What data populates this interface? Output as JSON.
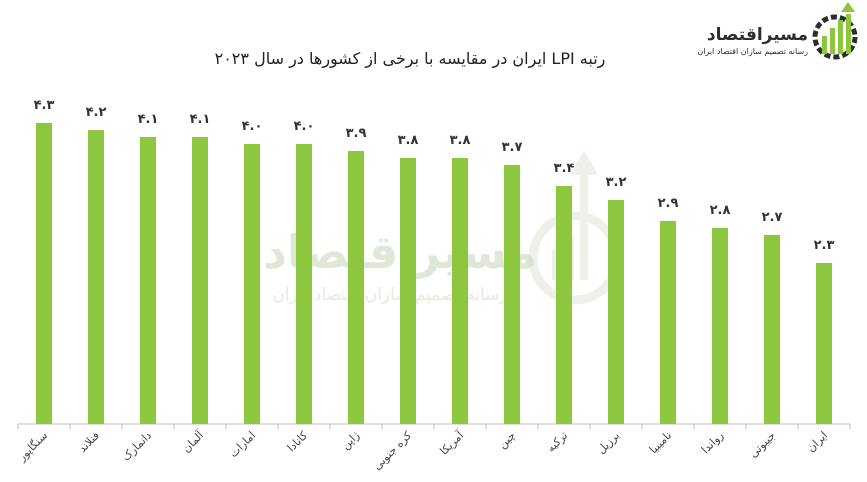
{
  "brand": {
    "name": "مسیراقتصاد",
    "tagline": "رسانه تصمیم سازان اقتصاد ایران",
    "color": "#8dc63f",
    "dark": "#2d2d2d"
  },
  "chart_data": {
    "type": "bar",
    "title": "رتبه LPI ایران در مقایسه با برخی از کشورها در سال ۲۰۲۳",
    "xlabel": "",
    "ylabel": "",
    "ylim": [
      0,
      4.6
    ],
    "grid": false,
    "bar_color": "#8dc63f",
    "categories": [
      "سنگاپور",
      "فنلاند",
      "دانمارک",
      "آلمان",
      "امارات",
      "کانادا",
      "ژاپن",
      "کره جنوبی",
      "آمریکا",
      "چین",
      "ترکیه",
      "برزیل",
      "نامیبیا",
      "رواندا",
      "جیبوتی",
      "ایران"
    ],
    "values": [
      4.3,
      4.2,
      4.1,
      4.1,
      4.0,
      4.0,
      3.9,
      3.8,
      3.8,
      3.7,
      3.4,
      3.2,
      2.9,
      2.8,
      2.7,
      2.3
    ],
    "value_labels": [
      "۴.۳",
      "۴.۲",
      "۴.۱",
      "۴.۱",
      "۴.۰",
      "۴.۰",
      "۳.۹",
      "۳.۸",
      "۳.۸",
      "۳.۷",
      "۳.۴",
      "۳.۲",
      "۲.۹",
      "۲.۸",
      "۲.۷",
      "۲.۳"
    ]
  }
}
